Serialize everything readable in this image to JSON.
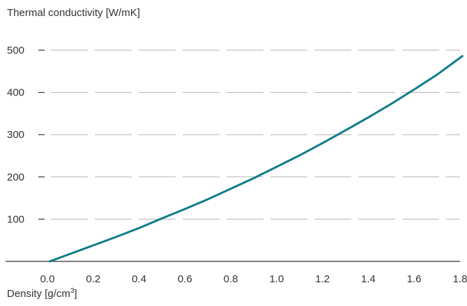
{
  "chart_data": {
    "type": "line",
    "ylabel": "Thermal conductivity [W/mK]",
    "xlabel_main": "Density [g/cm",
    "xlabel_sup": "3",
    "xlabel_end": "]",
    "xlim": [
      -0.1,
      1.85
    ],
    "ylim": [
      0,
      500
    ],
    "x_ticks": [
      0.0,
      0.2,
      0.4,
      0.6,
      0.8,
      1.0,
      1.2,
      1.4,
      1.6,
      1.8
    ],
    "x_tick_labels": [
      "0.0",
      "0.2",
      "0.4",
      "0.6",
      "0.8",
      "1.0",
      "1.2",
      "1.4",
      "1.6",
      "1.8"
    ],
    "y_ticks": [
      100,
      200,
      300,
      400,
      500
    ],
    "y_tick_labels": [
      "100",
      "200",
      "300",
      "400",
      "500"
    ],
    "grid": "horizontal-dashed",
    "series": [
      {
        "color": "#0f7c8a",
        "x": [
          0.01,
          0.1,
          0.2,
          0.3,
          0.4,
          0.5,
          0.6,
          0.7,
          0.8,
          0.9,
          1.0,
          1.1,
          1.2,
          1.3,
          1.4,
          1.5,
          1.6,
          1.7,
          1.81
        ],
        "y": [
          0,
          18,
          38,
          58,
          79,
          102,
          124,
          147,
          172,
          197,
          224,
          251,
          280,
          310,
          341,
          373,
          407,
          442,
          486
        ]
      }
    ]
  },
  "colors": {
    "axis": "#333333",
    "grid": "#b3b3b3",
    "line": "#0f7c8a"
  }
}
